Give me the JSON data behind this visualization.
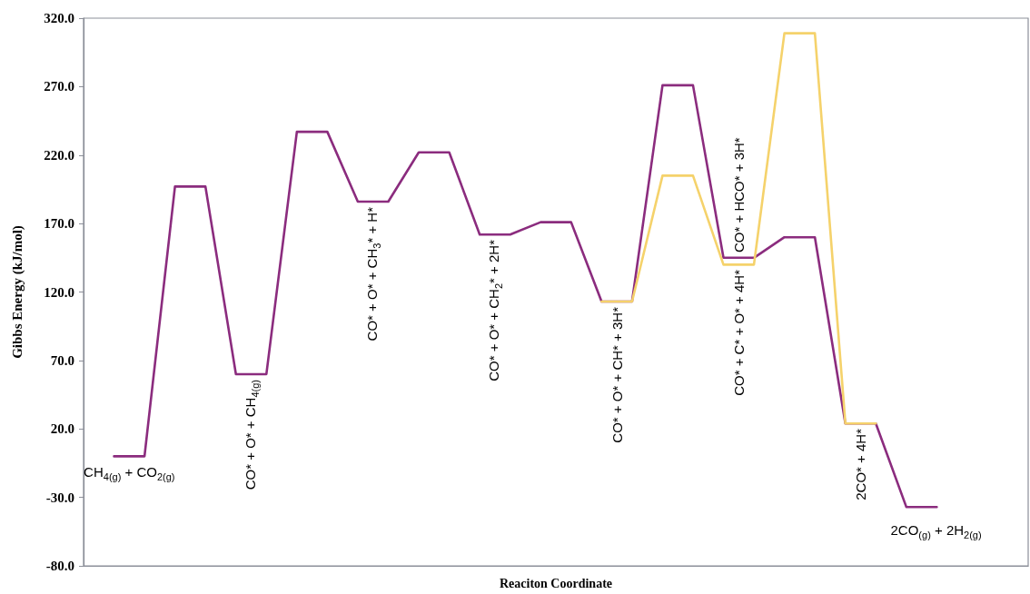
{
  "chart_data": {
    "type": "line",
    "xlabel": "Reaciton Coordinate",
    "ylabel": "Gibbs Energy (kJ/mol)",
    "categories": [
      null,
      null,
      null,
      null,
      null,
      null,
      null,
      null,
      null,
      null,
      null,
      null,
      null,
      null,
      null,
      null,
      null,
      null,
      null,
      null,
      null,
      null,
      null,
      null,
      null,
      null,
      null,
      null,
      null,
      null,
      null,
      null
    ],
    "series": [
      {
        "color": "#8b2c7e",
        "values": [
          null,
          0,
          0,
          197,
          197,
          60,
          60,
          237,
          237,
          186,
          186,
          222,
          222,
          162,
          162,
          171,
          171,
          113,
          113,
          271,
          271,
          145,
          145,
          160,
          160,
          24,
          24,
          -37,
          -37,
          null,
          null,
          null
        ]
      },
      {
        "color": "#f5d26b",
        "values": [
          null,
          null,
          null,
          null,
          null,
          null,
          null,
          null,
          null,
          null,
          null,
          null,
          null,
          null,
          null,
          null,
          null,
          113,
          113,
          205,
          205,
          140,
          140,
          309,
          309,
          24,
          24,
          null,
          null,
          null,
          null,
          null
        ]
      }
    ],
    "ylim": [
      -80,
      320
    ],
    "yticks": [
      {
        "value": -80,
        "label": "-80.0"
      },
      {
        "value": -30,
        "label": "-30.0"
      },
      {
        "value": 20,
        "label": "20.0"
      },
      {
        "value": 70,
        "label": "70.0"
      },
      {
        "value": 120,
        "label": "120.0"
      },
      {
        "value": 170,
        "label": "170.0"
      },
      {
        "value": 220,
        "label": "220.0"
      },
      {
        "value": 270,
        "label": "270.0"
      },
      {
        "value": 320,
        "label": "320.0"
      }
    ],
    "grid": false,
    "marker": "none",
    "line_style": "solid",
    "tick_labels": "y",
    "annotations": [
      {
        "text": "CH$_{4(g)}$ + CO$_{2(g)}$",
        "y": 0
      },
      {
        "text": "CO* + O* + CH$_{4(g)}$",
        "y": 60
      },
      {
        "text": "CO* + O* + CH$_{3}$* + H*",
        "y": 186
      },
      {
        "text": "CO* + O* + CH$_{2}$* + 2H*",
        "y": 162
      },
      {
        "text": "CO* + O* + CH* + 3H*",
        "y": 113
      },
      {
        "text": "CO* + C* + O* + 4H*",
        "y": 145
      },
      {
        "text": "CO* + HCO* + 3H*",
        "y": 140
      },
      {
        "text": "2CO* + 4H*",
        "y": 24
      },
      {
        "text": "2CO$_{(g)}$ + 2H$_{2(g)}$",
        "y": -37
      }
    ]
  }
}
